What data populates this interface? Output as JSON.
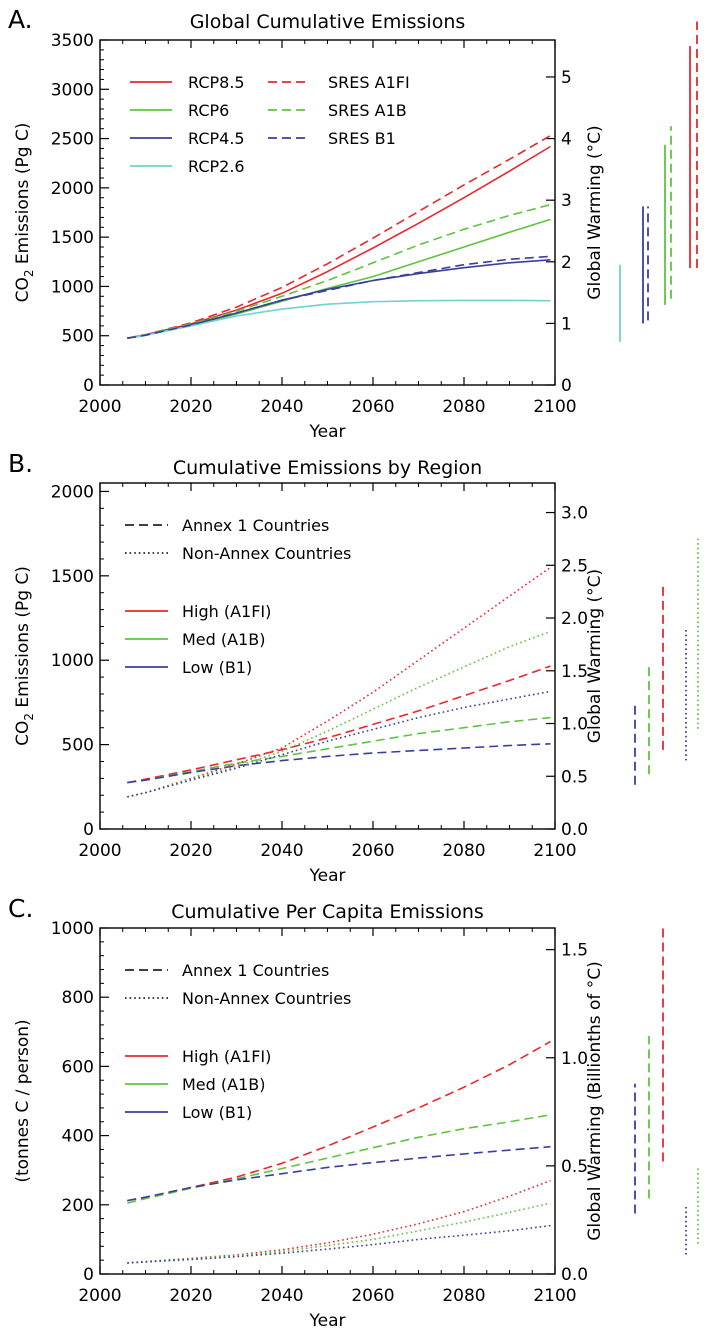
{
  "colors": {
    "red": "#e8282c",
    "green": "#5ec43f",
    "blue": "#3a3f9e",
    "cyan": "#6fd3cf",
    "black": "#000000"
  },
  "chart_data": [
    {
      "type": "line",
      "panel_letter": "A.",
      "title": "Global Cumulative Emissions",
      "xlabel": "Year",
      "ylabel": "CO2 Emissions (Pg C)",
      "ylabel_parts": {
        "pre": "CO",
        "sub": "2",
        "post": " Emissions (Pg C)"
      },
      "y2label": "Global Warming (°C)",
      "xlim": [
        2000,
        2100
      ],
      "ylim": [
        0,
        3500
      ],
      "y2lim": [
        0,
        5.6
      ],
      "xticks": [
        2000,
        2020,
        2040,
        2060,
        2080,
        2100
      ],
      "yticks": [
        0,
        500,
        1000,
        1500,
        2000,
        2500,
        3000,
        3500
      ],
      "y2ticks": [
        0,
        1,
        2,
        3,
        4,
        5
      ],
      "grid": false,
      "legend": "top-left, two columns",
      "x": [
        2006,
        2010,
        2020,
        2030,
        2040,
        2050,
        2060,
        2070,
        2080,
        2090,
        2099
      ],
      "series": [
        {
          "name": "RCP8.5",
          "color": "red",
          "dash": "solid",
          "values": [
            475,
            510,
            620,
            760,
            930,
            1150,
            1390,
            1640,
            1900,
            2170,
            2420
          ]
        },
        {
          "name": "RCP6",
          "color": "green",
          "dash": "solid",
          "values": [
            475,
            505,
            605,
            720,
            850,
            980,
            1100,
            1250,
            1400,
            1550,
            1680
          ]
        },
        {
          "name": "RCP4.5",
          "color": "blue",
          "dash": "solid",
          "values": [
            475,
            505,
            610,
            730,
            860,
            970,
            1060,
            1130,
            1190,
            1240,
            1270
          ]
        },
        {
          "name": "RCP2.6",
          "color": "cyan",
          "dash": "solid",
          "values": [
            475,
            505,
            600,
            700,
            770,
            820,
            845,
            855,
            858,
            858,
            855
          ]
        },
        {
          "name": "SRES A1FI",
          "color": "red",
          "dash": "dashed",
          "values": [
            475,
            510,
            630,
            790,
            990,
            1230,
            1490,
            1760,
            2030,
            2290,
            2530
          ]
        },
        {
          "name": "SRES A1B",
          "color": "green",
          "dash": "dashed",
          "values": [
            475,
            510,
            620,
            750,
            900,
            1060,
            1240,
            1420,
            1580,
            1720,
            1830
          ]
        },
        {
          "name": "SRES B1",
          "color": "blue",
          "dash": "dashed",
          "values": [
            475,
            505,
            610,
            730,
            860,
            960,
            1060,
            1140,
            1220,
            1275,
            1305
          ]
        }
      ],
      "warming_bars": [
        {
          "color": "cyan",
          "dash": "solid",
          "low": 0.7,
          "high": 1.95
        },
        {
          "color": "blue",
          "dash": "solid",
          "low": 1.0,
          "high": 2.9
        },
        {
          "color": "blue",
          "dash": "dashed",
          "low": 1.05,
          "high": 2.9
        },
        {
          "color": "green",
          "dash": "solid",
          "low": 1.3,
          "high": 3.9
        },
        {
          "color": "green",
          "dash": "dashed",
          "low": 1.4,
          "high": 4.2
        },
        {
          "color": "red",
          "dash": "solid",
          "low": 1.9,
          "high": 5.5
        },
        {
          "color": "red",
          "dash": "dashed",
          "low": 1.9,
          "high": 5.9
        }
      ]
    },
    {
      "type": "line",
      "panel_letter": "B.",
      "title": "Cumulative Emissions by Region",
      "xlabel": "Year",
      "ylabel": "CO2 Emissions (Pg C)",
      "ylabel_parts": {
        "pre": "CO",
        "sub": "2",
        "post": " Emissions (Pg C)"
      },
      "y2label": "Global Warming (°C)",
      "xlim": [
        2000,
        2100
      ],
      "ylim": [
        0,
        2050
      ],
      "y2lim": [
        0,
        3.28
      ],
      "xticks": [
        2000,
        2020,
        2040,
        2060,
        2080,
        2100
      ],
      "yticks": [
        0,
        500,
        1000,
        1500,
        2000
      ],
      "y2ticks": [
        "0.0",
        "0.5",
        "1.0",
        "1.5",
        "2.0",
        "2.5",
        "3.0"
      ],
      "grid": false,
      "legend": "top-left",
      "style_legend": [
        {
          "label": "Annex 1 Countries",
          "dash": "dashed"
        },
        {
          "label": "Non-Annex Countries",
          "dash": "dotted"
        }
      ],
      "color_legend": [
        {
          "label": "High (A1FI)",
          "color": "red"
        },
        {
          "label": "Med (A1B)",
          "color": "green"
        },
        {
          "label": "Low (B1)",
          "color": "blue"
        }
      ],
      "x": [
        2006,
        2010,
        2020,
        2030,
        2040,
        2050,
        2060,
        2070,
        2080,
        2090,
        2099
      ],
      "series": [
        {
          "color": "red",
          "dash": "dashed",
          "values": [
            275,
            295,
            350,
            410,
            470,
            540,
            620,
            700,
            790,
            880,
            965
          ]
        },
        {
          "color": "green",
          "dash": "dashed",
          "values": [
            275,
            290,
            340,
            390,
            430,
            475,
            520,
            565,
            600,
            635,
            660
          ]
        },
        {
          "color": "blue",
          "dash": "dashed",
          "values": [
            275,
            290,
            335,
            375,
            405,
            430,
            450,
            465,
            480,
            495,
            505
          ]
        },
        {
          "color": "red",
          "dash": "dotted",
          "values": [
            190,
            215,
            300,
            385,
            480,
            640,
            810,
            1000,
            1190,
            1380,
            1550
          ]
        },
        {
          "color": "green",
          "dash": "dotted",
          "values": [
            190,
            215,
            295,
            370,
            460,
            580,
            710,
            840,
            960,
            1080,
            1170
          ]
        },
        {
          "color": "blue",
          "dash": "dotted",
          "values": [
            190,
            215,
            290,
            360,
            440,
            520,
            590,
            660,
            720,
            770,
            815
          ]
        }
      ],
      "warming_bars": [
        {
          "color": "blue",
          "dash": "dashed",
          "low": 0.42,
          "high": 1.18
        },
        {
          "color": "green",
          "dash": "dashed",
          "low": 0.52,
          "high": 1.58
        },
        {
          "color": "red",
          "dash": "dashed",
          "low": 0.75,
          "high": 2.3
        },
        {
          "color": "blue",
          "dash": "dotted",
          "low": 0.65,
          "high": 1.9
        },
        {
          "color": "green",
          "dash": "dotted",
          "low": 0.95,
          "high": 2.78
        }
      ]
    },
    {
      "type": "line",
      "panel_letter": "C.",
      "title": "Cumulative Per Capita Emissions",
      "xlabel": "Year",
      "ylabel": "(tonnes C / person)",
      "y2label": "Global Warming (Billionths of °C)",
      "xlim": [
        2000,
        2100
      ],
      "ylim": [
        0,
        1000
      ],
      "y2lim": [
        0,
        1.6
      ],
      "xticks": [
        2000,
        2020,
        2040,
        2060,
        2080,
        2100
      ],
      "yticks": [
        0,
        200,
        400,
        600,
        800,
        1000
      ],
      "y2ticks": [
        "0.0",
        "0.5",
        "1.0",
        "1.5"
      ],
      "grid": false,
      "legend": "top-left",
      "style_legend": [
        {
          "label": "Annex 1 Countries",
          "dash": "dashed"
        },
        {
          "label": "Non-Annex Countries",
          "dash": "dotted"
        }
      ],
      "color_legend": [
        {
          "label": "High (A1FI)",
          "color": "red"
        },
        {
          "label": "Med (A1B)",
          "color": "green"
        },
        {
          "label": "Low (B1)",
          "color": "blue"
        }
      ],
      "x": [
        2006,
        2010,
        2020,
        2030,
        2040,
        2050,
        2060,
        2070,
        2080,
        2090,
        2099
      ],
      "series": [
        {
          "color": "red",
          "dash": "dashed",
          "values": [
            212,
            222,
            250,
            280,
            320,
            370,
            425,
            480,
            540,
            605,
            672
          ]
        },
        {
          "color": "green",
          "dash": "dashed",
          "values": [
            205,
            218,
            248,
            275,
            305,
            335,
            365,
            395,
            420,
            440,
            460
          ]
        },
        {
          "color": "blue",
          "dash": "dashed",
          "values": [
            212,
            222,
            250,
            272,
            290,
            308,
            322,
            335,
            347,
            358,
            368
          ]
        },
        {
          "color": "red",
          "dash": "dotted",
          "values": [
            32,
            36,
            45,
            55,
            70,
            90,
            115,
            145,
            180,
            225,
            270
          ]
        },
        {
          "color": "green",
          "dash": "dotted",
          "values": [
            32,
            35,
            43,
            53,
            65,
            82,
            100,
            125,
            150,
            178,
            205
          ]
        },
        {
          "color": "blue",
          "dash": "dotted",
          "values": [
            32,
            35,
            42,
            50,
            60,
            72,
            85,
            100,
            112,
            125,
            140
          ]
        }
      ],
      "warming_bars": [
        {
          "color": "blue",
          "dash": "dashed",
          "low": 0.28,
          "high": 0.88
        },
        {
          "color": "green",
          "dash": "dashed",
          "low": 0.35,
          "high": 1.1
        },
        {
          "color": "red",
          "dash": "dashed",
          "low": 0.52,
          "high": 1.6
        },
        {
          "color": "blue",
          "dash": "dotted",
          "low": 0.09,
          "high": 0.32
        },
        {
          "color": "green",
          "dash": "dotted",
          "low": 0.14,
          "high": 0.5
        }
      ]
    }
  ]
}
